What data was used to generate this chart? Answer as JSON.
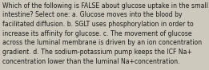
{
  "text": "Which of the following is FALSE about glucose uptake in the small\nintestine? Select one: a. Glucose moves into the blood by\nfacilitated diffusion. b. SGLT uses phosphorylation in order to\nincrease its affinity for glucose. c. The movement of glucose\nacross the luminal membrane is driven by an ion concentration\ngradient. d. The sodium-potassium pump keeps the ICF Na+\nconcentration lower than the luminal Na+concentration.",
  "bg_color": "#cdc9bc",
  "text_color": "#1a1a1a",
  "font_size": 5.6,
  "fig_width": 2.61,
  "fig_height": 0.88,
  "dpi": 100
}
